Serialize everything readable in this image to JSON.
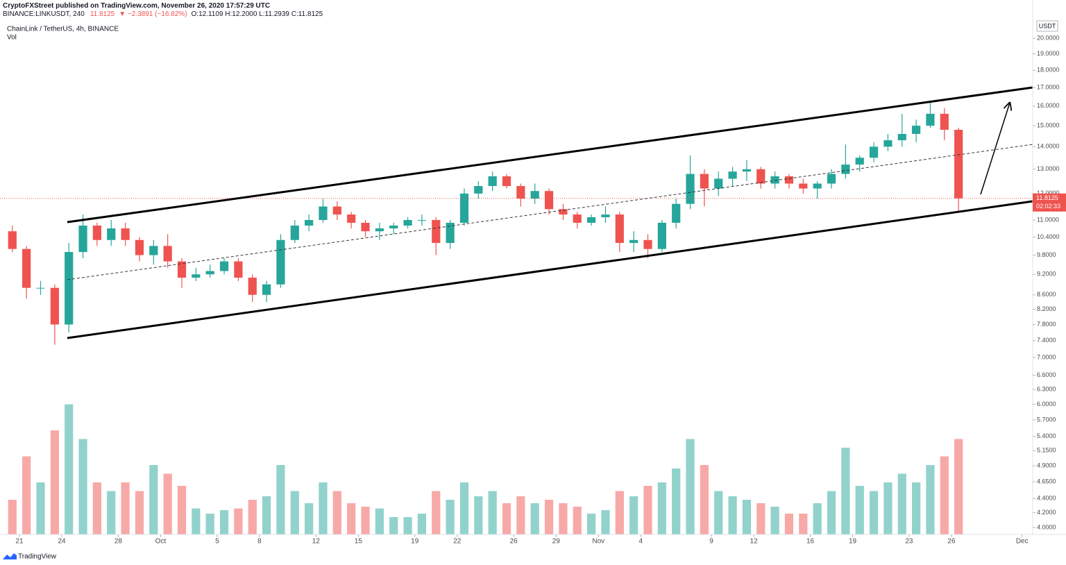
{
  "header": {
    "line1": "CryptoFXStreet published on TradingView.com, November 26, 2020 17:57:29 UTC",
    "symbol": "BINANCE:LINKUSDT, 240",
    "last": "11.8125",
    "change": "▼ −2.3891 (−16.82%)",
    "ohlc": "O:12.1109 H:12.2000 L:11.2939 C:11.8125"
  },
  "chart_data": {
    "type": "candlestick",
    "title": "ChainLink / TetherUS, 4h, BINANCE",
    "volume_label": "Vol",
    "currency": "USDT",
    "countdown": "02:02:33",
    "last_price": 11.8125,
    "log_scale": true,
    "up_color": "#26a69a",
    "down_color": "#ef5350",
    "brand": "TradingView",
    "xlim": [
      "2020-09-19T15:00",
      "2020-12-01T18:00"
    ],
    "xticks": [
      {
        "value": "2020-09-21",
        "label": "21"
      },
      {
        "value": "2020-09-24",
        "label": "24"
      },
      {
        "value": "2020-09-28",
        "label": "28"
      },
      {
        "value": "2020-10-01",
        "label": "Oct"
      },
      {
        "value": "2020-10-05",
        "label": "5"
      },
      {
        "value": "2020-10-08",
        "label": "8"
      },
      {
        "value": "2020-10-12",
        "label": "12"
      },
      {
        "value": "2020-10-15",
        "label": "15"
      },
      {
        "value": "2020-10-19",
        "label": "19"
      },
      {
        "value": "2020-10-22",
        "label": "22"
      },
      {
        "value": "2020-10-26",
        "label": "26"
      },
      {
        "value": "2020-10-29",
        "label": "29"
      },
      {
        "value": "2020-11-01",
        "label": "Nov"
      },
      {
        "value": "2020-11-04",
        "label": "4"
      },
      {
        "value": "2020-11-09",
        "label": "9"
      },
      {
        "value": "2020-11-12",
        "label": "12"
      },
      {
        "value": "2020-11-16",
        "label": "16"
      },
      {
        "value": "2020-11-19",
        "label": "19"
      },
      {
        "value": "2020-11-23",
        "label": "23"
      },
      {
        "value": "2020-11-26",
        "label": "26"
      },
      {
        "value": "2020-12-01",
        "label": "Dec"
      }
    ],
    "ylim": [
      3.91,
      21.18
    ],
    "yticks": [
      {
        "value": 20,
        "label": "20.0000"
      },
      {
        "value": 19,
        "label": "19.0000"
      },
      {
        "value": 18,
        "label": "18.0000"
      },
      {
        "value": 17,
        "label": "17.0000"
      },
      {
        "value": 16,
        "label": "16.0000"
      },
      {
        "value": 15,
        "label": "15.0000"
      },
      {
        "value": 14,
        "label": "14.0000"
      },
      {
        "value": 13,
        "label": "13.0000"
      },
      {
        "value": 12,
        "label": "12.0000"
      },
      {
        "value": 11,
        "label": "11.0000"
      },
      {
        "value": 10.4,
        "label": "10.4000"
      },
      {
        "value": 9.8,
        "label": "9.8000"
      },
      {
        "value": 9.2,
        "label": "9.2000"
      },
      {
        "value": 8.6,
        "label": "8.6000"
      },
      {
        "value": 8.2,
        "label": "8.2000"
      },
      {
        "value": 7.8,
        "label": "7.8000"
      },
      {
        "value": 7.4,
        "label": "7.4000"
      },
      {
        "value": 7,
        "label": "7.0000"
      },
      {
        "value": 6.6,
        "label": "6.6000"
      },
      {
        "value": 6.3,
        "label": "6.3000"
      },
      {
        "value": 6,
        "label": "6.0000"
      },
      {
        "value": 5.7,
        "label": "5.7000"
      },
      {
        "value": 5.4,
        "label": "5.4000"
      },
      {
        "value": 5.15,
        "label": "5.1500"
      },
      {
        "value": 4.9,
        "label": "4.9000"
      },
      {
        "value": 4.65,
        "label": "4.6500"
      },
      {
        "value": 4.4,
        "label": "4.4000"
      },
      {
        "value": 4.2,
        "label": "4.2000"
      },
      {
        "value": 4,
        "label": "4.0000"
      }
    ],
    "volume_ylim": [
      0,
      100
    ],
    "x": [
      "2020-09-20",
      "2020-09-21",
      "2020-09-22",
      "2020-09-23",
      "2020-09-24",
      "2020-09-25",
      "2020-09-26",
      "2020-09-27",
      "2020-09-28",
      "2020-09-29",
      "2020-09-30",
      "2020-10-01",
      "2020-10-02",
      "2020-10-03",
      "2020-10-04",
      "2020-10-05",
      "2020-10-06",
      "2020-10-07",
      "2020-10-08",
      "2020-10-09",
      "2020-10-10",
      "2020-10-11",
      "2020-10-12",
      "2020-10-13",
      "2020-10-14",
      "2020-10-15",
      "2020-10-16",
      "2020-10-17",
      "2020-10-18",
      "2020-10-19",
      "2020-10-20",
      "2020-10-21",
      "2020-10-22",
      "2020-10-23",
      "2020-10-24",
      "2020-10-25",
      "2020-10-26",
      "2020-10-27",
      "2020-10-28",
      "2020-10-29",
      "2020-10-30",
      "2020-10-31",
      "2020-11-01",
      "2020-11-02",
      "2020-11-03",
      "2020-11-04",
      "2020-11-05",
      "2020-11-06",
      "2020-11-07",
      "2020-11-08",
      "2020-11-09",
      "2020-11-10",
      "2020-11-11",
      "2020-11-12",
      "2020-11-13",
      "2020-11-14",
      "2020-11-15",
      "2020-11-16",
      "2020-11-17",
      "2020-11-18",
      "2020-11-19",
      "2020-11-20",
      "2020-11-21",
      "2020-11-22",
      "2020-11-23",
      "2020-11-24",
      "2020-11-25",
      "2020-11-26"
    ],
    "open": [
      10.6,
      10.0,
      8.8,
      8.8,
      7.8,
      9.9,
      10.8,
      10.3,
      10.7,
      10.3,
      9.8,
      10.1,
      9.6,
      9.1,
      9.2,
      9.3,
      9.6,
      9.1,
      8.6,
      8.9,
      10.3,
      10.8,
      11.0,
      11.5,
      11.2,
      10.9,
      10.6,
      10.7,
      10.8,
      11.0,
      11.0,
      10.2,
      10.9,
      12.0,
      12.3,
      12.7,
      12.3,
      11.8,
      12.1,
      11.4,
      11.2,
      10.9,
      11.1,
      11.2,
      10.2,
      10.3,
      10.0,
      10.9,
      11.6,
      12.8,
      12.2,
      12.6,
      12.9,
      13.0,
      12.4,
      12.7,
      12.4,
      12.2,
      12.4,
      12.8,
      13.2,
      13.5,
      14.0,
      14.3,
      14.6,
      15.0,
      15.6,
      14.8
    ],
    "high": [
      10.8,
      10.1,
      9.0,
      8.9,
      10.2,
      11.2,
      10.9,
      11.0,
      10.9,
      10.4,
      10.3,
      10.5,
      9.7,
      9.4,
      9.5,
      9.7,
      9.7,
      9.2,
      9.0,
      10.5,
      11.0,
      11.2,
      11.8,
      11.7,
      11.3,
      11.0,
      10.9,
      10.9,
      11.1,
      11.2,
      11.1,
      11.0,
      12.2,
      12.5,
      12.9,
      12.8,
      12.4,
      12.4,
      12.2,
      11.6,
      11.3,
      11.2,
      11.5,
      11.3,
      10.6,
      10.5,
      11.0,
      11.8,
      13.6,
      13.0,
      12.9,
      13.1,
      13.4,
      13.1,
      12.9,
      12.8,
      12.6,
      12.5,
      13.0,
      14.1,
      13.6,
      14.2,
      14.6,
      15.6,
      15.3,
      16.3,
      15.9,
      14.9
    ],
    "low": [
      9.9,
      8.5,
      8.6,
      7.3,
      7.6,
      9.7,
      10.1,
      10.1,
      10.1,
      9.6,
      9.5,
      9.4,
      8.8,
      9.0,
      9.1,
      9.2,
      9.0,
      8.4,
      8.4,
      8.8,
      10.2,
      10.6,
      10.9,
      11.0,
      10.7,
      10.4,
      10.3,
      10.5,
      10.7,
      10.8,
      9.8,
      10.0,
      10.8,
      11.8,
      12.1,
      12.2,
      11.5,
      11.6,
      11.2,
      11.0,
      10.7,
      10.8,
      10.9,
      9.9,
      9.9,
      9.7,
      9.9,
      10.7,
      11.4,
      11.5,
      11.9,
      12.3,
      12.5,
      12.2,
      12.2,
      12.2,
      12.0,
      11.8,
      12.2,
      12.6,
      12.9,
      13.3,
      13.8,
      14.0,
      14.2,
      14.9,
      14.3,
      11.29
    ],
    "close": [
      10.0,
      8.8,
      8.8,
      7.8,
      9.9,
      10.8,
      10.3,
      10.7,
      10.3,
      9.8,
      10.1,
      9.6,
      9.1,
      9.2,
      9.3,
      9.6,
      9.1,
      8.6,
      8.9,
      10.3,
      10.8,
      11.0,
      11.5,
      11.2,
      10.9,
      10.6,
      10.7,
      10.8,
      11.0,
      11.0,
      10.2,
      10.9,
      12.0,
      12.3,
      12.7,
      12.3,
      11.8,
      12.1,
      11.4,
      11.2,
      10.9,
      11.1,
      11.2,
      10.2,
      10.3,
      10.0,
      10.9,
      11.6,
      12.8,
      12.2,
      12.6,
      12.9,
      13.0,
      12.4,
      12.7,
      12.4,
      12.2,
      12.4,
      12.8,
      13.2,
      13.5,
      14.0,
      14.3,
      14.6,
      15.0,
      15.6,
      14.8,
      11.81
    ],
    "volume": [
      20,
      45,
      30,
      60,
      75,
      55,
      30,
      25,
      30,
      25,
      40,
      35,
      28,
      15,
      12,
      14,
      15,
      20,
      22,
      40,
      25,
      18,
      30,
      25,
      18,
      16,
      15,
      10,
      10,
      12,
      25,
      20,
      30,
      22,
      25,
      18,
      22,
      18,
      20,
      18,
      16,
      12,
      14,
      25,
      22,
      28,
      30,
      38,
      55,
      40,
      25,
      22,
      20,
      18,
      16,
      12,
      12,
      18,
      25,
      50,
      28,
      25,
      30,
      35,
      30,
      40,
      45,
      55
    ]
  }
}
